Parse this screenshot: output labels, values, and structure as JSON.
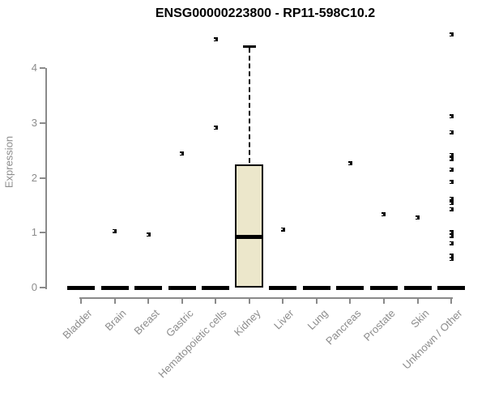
{
  "colors": {
    "box_fill": "#ece7cb",
    "box_border": "#000000",
    "median_color": "#000000",
    "axis_color": "#8a8a8a",
    "label_color": "#8c8c8c",
    "title_color": "#000000",
    "background": "#ffffff"
  },
  "chart_data": {
    "type": "boxplot",
    "title": "ENSG00000223800 - RP11-598C10.2",
    "ylabel": "Expression",
    "xlabel": "",
    "ylim": [
      0,
      4.65
    ],
    "yticks": [
      0,
      1,
      2,
      3,
      4
    ],
    "grid": false,
    "legend": false,
    "categories": [
      "Bladder",
      "Brain",
      "Breast",
      "Gastric",
      "Hematopoietic cells",
      "Kidney",
      "Liver",
      "Lung",
      "Pancreas",
      "Prostate",
      "Skin",
      "Unknown / Other"
    ],
    "boxes": [
      {
        "category": "Bladder",
        "q1": 0,
        "median": 0,
        "q3": 0,
        "whisker_low": 0,
        "whisker_high": 0,
        "outliers": []
      },
      {
        "category": "Brain",
        "q1": 0,
        "median": 0,
        "q3": 0,
        "whisker_low": 0,
        "whisker_high": 0,
        "outliers": [
          1.03
        ]
      },
      {
        "category": "Breast",
        "q1": 0,
        "median": 0,
        "q3": 0,
        "whisker_low": 0,
        "whisker_high": 0,
        "outliers": [
          0.96
        ]
      },
      {
        "category": "Gastric",
        "q1": 0,
        "median": 0,
        "q3": 0,
        "whisker_low": 0,
        "whisker_high": 0,
        "outliers": [
          2.44
        ]
      },
      {
        "category": "Hematopoietic cells",
        "q1": 0,
        "median": 0,
        "q3": 0,
        "whisker_low": 0,
        "whisker_high": 0,
        "outliers": [
          4.52,
          2.91
        ]
      },
      {
        "category": "Kidney",
        "q1": 0,
        "median": 0.93,
        "q3": 2.24,
        "whisker_low": 0,
        "whisker_high": 4.4,
        "outliers": []
      },
      {
        "category": "Liver",
        "q1": 0,
        "median": 0,
        "q3": 0,
        "whisker_low": 0,
        "whisker_high": 0,
        "outliers": [
          1.06
        ]
      },
      {
        "category": "Lung",
        "q1": 0,
        "median": 0,
        "q3": 0,
        "whisker_low": 0,
        "whisker_high": 0,
        "outliers": []
      },
      {
        "category": "Pancreas",
        "q1": 0,
        "median": 0,
        "q3": 0,
        "whisker_low": 0,
        "whisker_high": 0,
        "outliers": [
          2.26
        ]
      },
      {
        "category": "Prostate",
        "q1": 0,
        "median": 0,
        "q3": 0,
        "whisker_low": 0,
        "whisker_high": 0,
        "outliers": [
          1.33
        ]
      },
      {
        "category": "Skin",
        "q1": 0,
        "median": 0,
        "q3": 0,
        "whisker_low": 0,
        "whisker_high": 0,
        "outliers": [
          1.27
        ]
      },
      {
        "category": "Unknown / Other",
        "q1": 0,
        "median": 0,
        "q3": 0,
        "whisker_low": 0,
        "whisker_high": 0,
        "outliers": [
          4.61,
          3.12,
          2.83,
          2.42,
          2.34,
          2.15,
          1.92,
          1.62,
          1.54,
          1.43,
          1.01,
          0.94,
          0.81,
          0.58,
          0.52
        ]
      }
    ]
  }
}
